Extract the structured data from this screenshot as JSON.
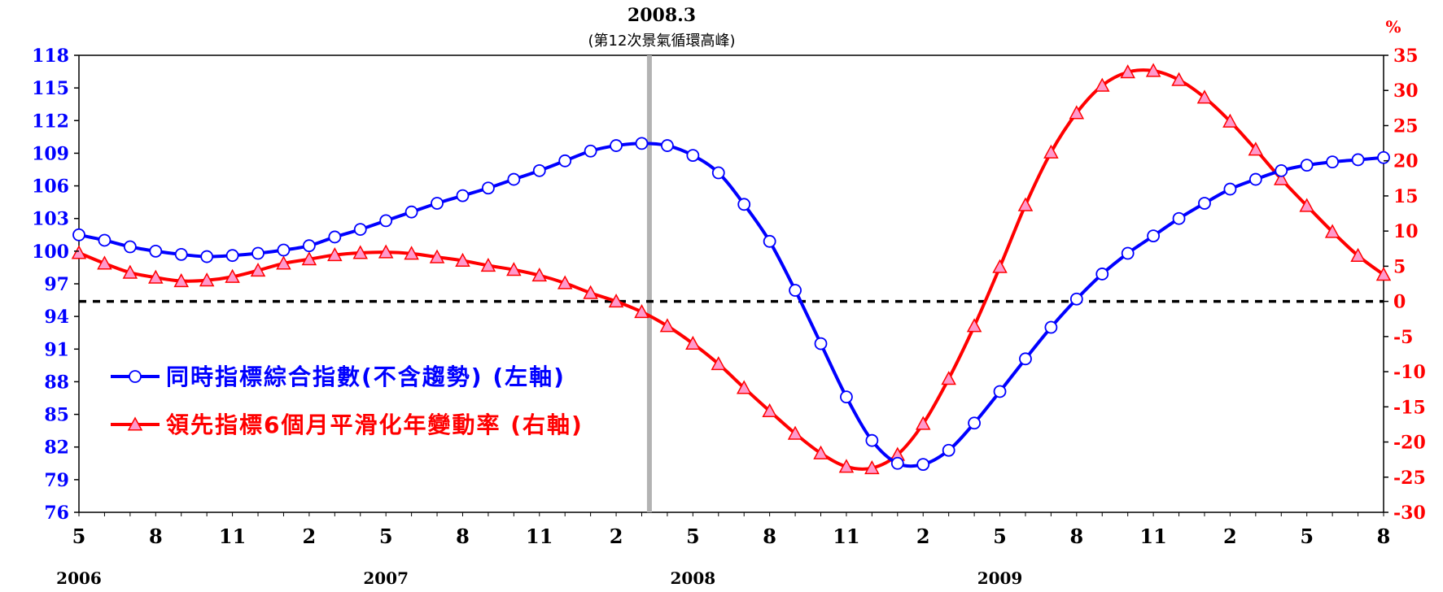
{
  "chart_data": {
    "type": "line",
    "title": "2008.3",
    "subtitle": "(第12次景氣循環高峰)",
    "right_axis_unit": "%",
    "colors": {
      "coincident": "#0000ff",
      "leading": "#ff0000",
      "zero_line": "#000000",
      "peak_marker": "#b3b3b3"
    },
    "ylim_left": [
      76,
      118
    ],
    "yticks_left": [
      "118",
      "115",
      "112",
      "109",
      "106",
      "103",
      "100",
      "97",
      "94",
      "91",
      "88",
      "85",
      "82",
      "79",
      "76"
    ],
    "ylim_right": [
      -30,
      35
    ],
    "yticks_right": [
      "35",
      "30",
      "25",
      "20",
      "15",
      "10",
      "5",
      "0",
      "-5",
      "-10",
      "-15",
      "-20",
      "-25",
      "-30"
    ],
    "x_tick_labels": [
      "5",
      "8",
      "11",
      "2",
      "5",
      "8",
      "11",
      "2",
      "5",
      "8",
      "11",
      "2",
      "5",
      "8",
      "11",
      "2",
      "5",
      "8"
    ],
    "year_labels": [
      "2006",
      "2007",
      "2008",
      "2009"
    ],
    "x_start": "2006-05",
    "peak_date": "2008-03",
    "zero_reference_right": 0,
    "series": [
      {
        "name": "同時指標綜合指數(不含趨勢) (左軸)",
        "axis": "left",
        "values": [
          101.5,
          101.0,
          100.4,
          100.0,
          99.7,
          99.5,
          99.6,
          99.8,
          100.1,
          100.5,
          101.3,
          102.0,
          102.8,
          103.6,
          104.4,
          105.1,
          105.8,
          106.6,
          107.4,
          108.3,
          109.2,
          109.7,
          109.9,
          109.7,
          108.8,
          107.2,
          104.3,
          100.9,
          96.4,
          91.5,
          86.6,
          82.6,
          80.5,
          80.4,
          81.7,
          84.2,
          87.1,
          90.1,
          93.0,
          95.6,
          97.9,
          99.8,
          101.4,
          103.0,
          104.4,
          105.7,
          106.6,
          107.4,
          107.9,
          108.2,
          108.4,
          108.6
        ]
      },
      {
        "name": "領先指標6個月平滑化年變動率 (右軸)",
        "axis": "right",
        "values": [
          6.9,
          5.4,
          4.1,
          3.4,
          2.9,
          3.0,
          3.5,
          4.4,
          5.4,
          6.0,
          6.6,
          6.9,
          7.0,
          6.8,
          6.3,
          5.8,
          5.1,
          4.5,
          3.7,
          2.6,
          1.2,
          0.0,
          -1.5,
          -3.5,
          -6.0,
          -8.9,
          -12.3,
          -15.6,
          -18.8,
          -21.6,
          -23.5,
          -23.7,
          -21.8,
          -17.4,
          -11.0,
          -3.5,
          4.9,
          13.7,
          21.2,
          26.8,
          30.7,
          32.6,
          32.8,
          31.5,
          29.0,
          25.6,
          21.6,
          17.4,
          13.6,
          9.9,
          6.5,
          3.8
        ]
      }
    ],
    "legend": [
      {
        "text": "同時指標綜合指數(不含趨勢) (左軸)"
      },
      {
        "text": "領先指標6個月平滑化年變動率 (右軸)"
      }
    ],
    "legend_position": "bottom-left inside plot",
    "grid": false
  }
}
